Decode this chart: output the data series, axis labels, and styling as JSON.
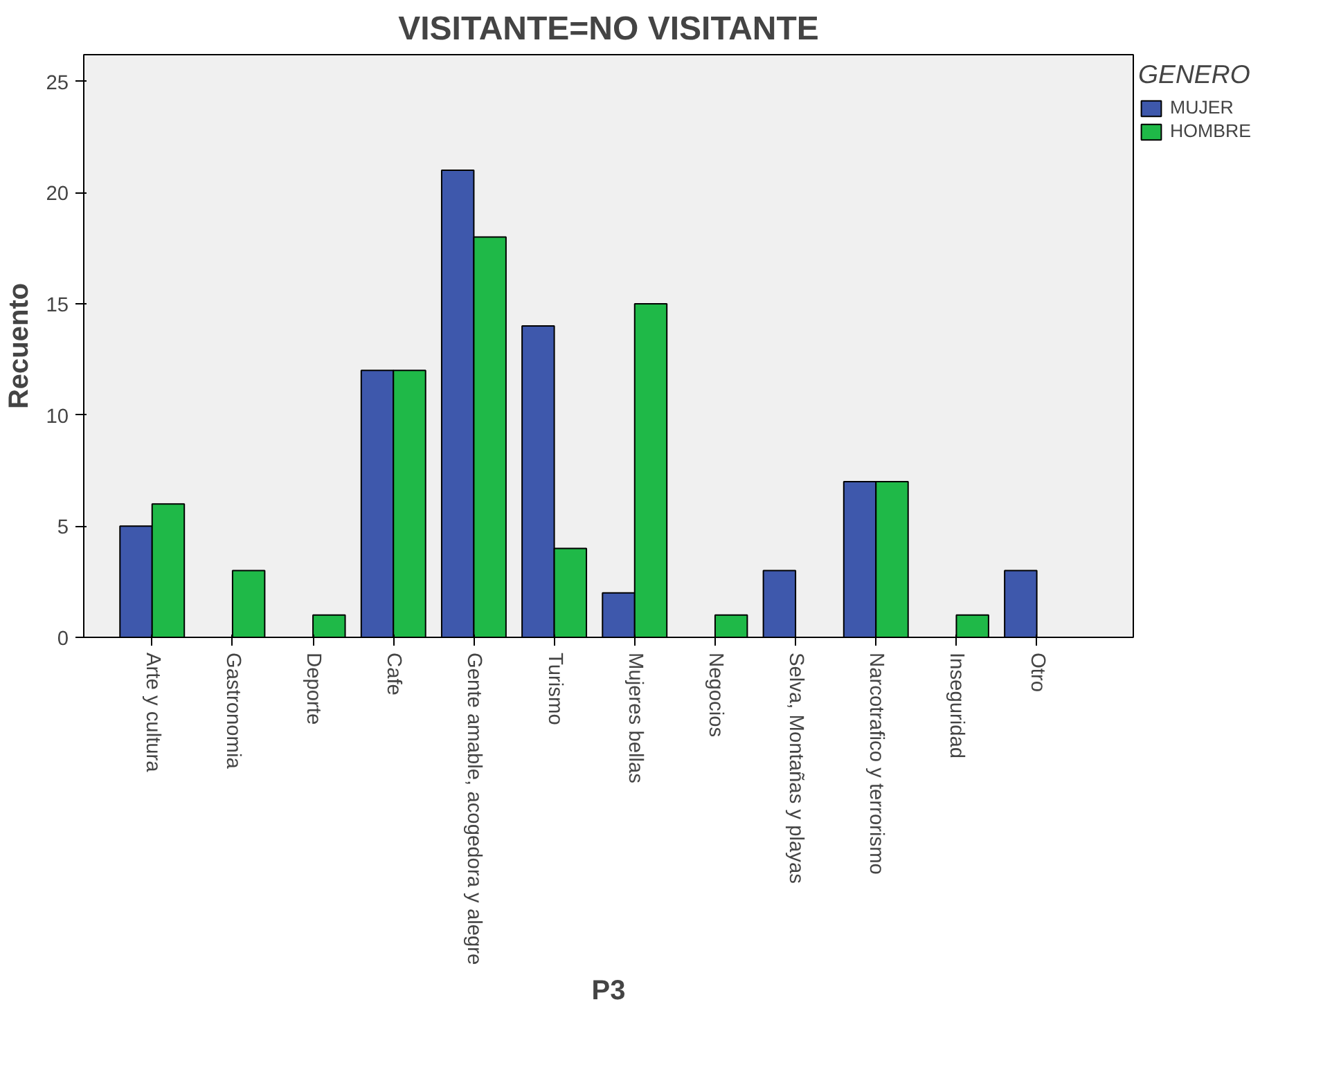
{
  "chart_data": {
    "type": "bar",
    "title": "VISITANTE=NO VISITANTE",
    "xlabel": "P3",
    "ylabel": "Recuento",
    "legend_title": "GENERO",
    "categories": [
      "Arte y cultura",
      "Gastronomia",
      "Deporte",
      "Cafe",
      "Gente amable, acogedora y alegre",
      "Turismo",
      "Mujeres bellas",
      "Negocios",
      "Selva, Montañas y playas",
      "Narcotrafico y terrorismo",
      "Inseguridad",
      "Otro"
    ],
    "series": [
      {
        "name": "MUJER",
        "color": "#3e58ac",
        "values": [
          5,
          null,
          null,
          12,
          21,
          14,
          2,
          null,
          3,
          7,
          null,
          3
        ]
      },
      {
        "name": "HOMBRE",
        "color": "#1fb948",
        "values": [
          6,
          3,
          1,
          12,
          18,
          4,
          15,
          1,
          null,
          7,
          1,
          null
        ]
      }
    ],
    "ylim": [
      0,
      26.2
    ],
    "yticks": [
      0,
      5,
      10,
      15,
      20,
      25
    ],
    "grid": false,
    "legend": "top right"
  }
}
